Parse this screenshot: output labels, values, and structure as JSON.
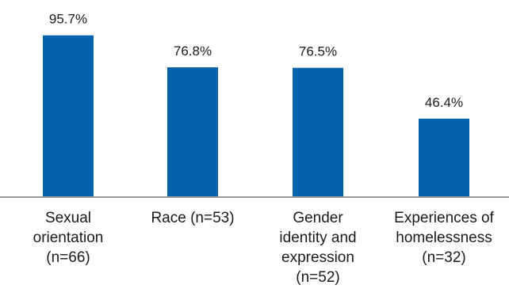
{
  "chart_data": {
    "type": "bar",
    "categories": [
      "Sexual orientation (n=66)",
      "Race (n=53)",
      "Gender identity and expression (n=52)",
      "Experiences of homelessness (n=32)"
    ],
    "category_lines": [
      [
        "Sexual",
        "orientation",
        "(n=66)"
      ],
      [
        "Race (n=53)"
      ],
      [
        "Gender",
        "identity and",
        "expression",
        "(n=52)"
      ],
      [
        "Experiences of",
        "homelessness",
        "(n=32)"
      ]
    ],
    "values": [
      95.7,
      76.8,
      76.5,
      46.4
    ],
    "value_labels": [
      "95.7%",
      "76.8%",
      "76.5%",
      "46.4%"
    ],
    "unit": "%",
    "ylim": [
      0,
      100
    ],
    "grid": false,
    "legend": "none",
    "bar_color": "#0563ad",
    "axis_color": "#999999"
  }
}
